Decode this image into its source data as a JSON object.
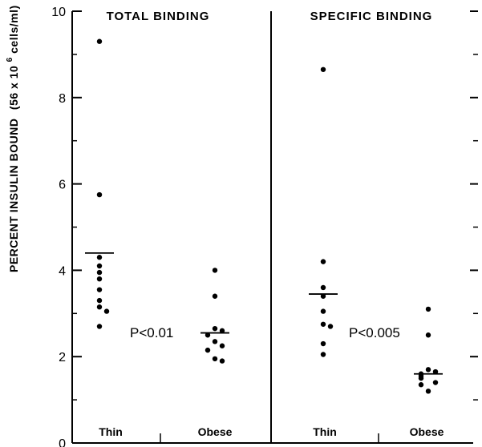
{
  "chart_data": {
    "type": "scatter",
    "ylabel_main": "PERCENT INSULIN BOUND",
    "ylabel_paren": "(56 x 10",
    "ylabel_sup": "6",
    "ylabel_tail": " cells/ml)",
    "ylim": [
      0,
      10
    ],
    "yticks": [
      "0",
      "2",
      "4",
      "6",
      "8",
      "10"
    ],
    "grid": false,
    "panels": [
      {
        "title": "TOTAL BINDING",
        "pvalue": "P<0.01",
        "groups": [
          {
            "label": "Thin",
            "mean": 4.4,
            "values": [
              9.3,
              5.75,
              4.3,
              4.1,
              3.95,
              3.8,
              3.55,
              3.3,
              3.15,
              3.05,
              2.7
            ]
          },
          {
            "label": "Obese",
            "mean": 2.55,
            "values": [
              4.0,
              3.4,
              2.65,
              2.6,
              2.5,
              2.35,
              2.25,
              2.15,
              1.95,
              1.9
            ]
          }
        ]
      },
      {
        "title": "SPECIFIC BINDING",
        "pvalue": "P<0.005",
        "groups": [
          {
            "label": "Thin",
            "mean": 3.45,
            "values": [
              8.65,
              4.2,
              3.6,
              3.4,
              3.05,
              2.75,
              2.7,
              2.3,
              2.05
            ]
          },
          {
            "label": "Obese",
            "mean": 1.6,
            "values": [
              3.1,
              2.5,
              1.7,
              1.65,
              1.6,
              1.55,
              1.5,
              1.4,
              1.35,
              1.2
            ]
          }
        ]
      }
    ]
  }
}
